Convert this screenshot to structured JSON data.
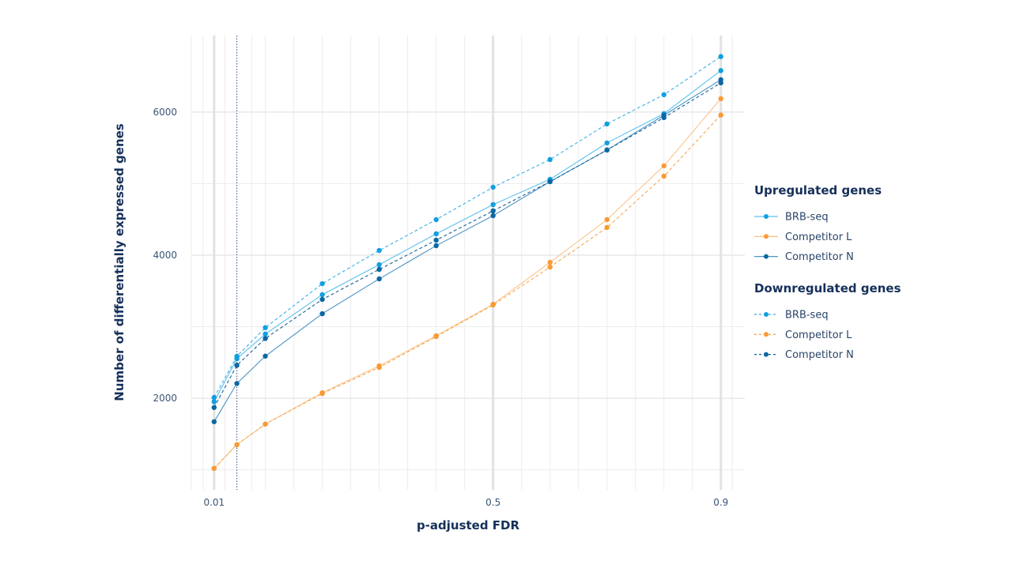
{
  "chart_data": {
    "type": "line",
    "title": "",
    "xlabel": "p-adjusted FDR",
    "ylabel": "Number of differentially expressed genes",
    "xlim": [
      -0.03,
      0.942
    ],
    "ylim": [
      720,
      7070
    ],
    "x_ticks": [
      0.01,
      0.5,
      0.9
    ],
    "x_tick_labels": [
      "0.01",
      "0.5",
      "0.9"
    ],
    "y_ticks": [
      2000,
      4000,
      6000
    ],
    "y_tick_labels": [
      "2000",
      "4000",
      "6000"
    ],
    "grid": true,
    "reference_line_x": 0.05,
    "legend_position": "right",
    "x": [
      0.01,
      0.05,
      0.1,
      0.2,
      0.3,
      0.4,
      0.5,
      0.6,
      0.7,
      0.8,
      0.9
    ],
    "legend_groups": [
      {
        "title": "Upregulated genes",
        "linestyle": "solid"
      },
      {
        "title": "Downregulated genes",
        "linestyle": "dashed"
      }
    ],
    "series": [
      {
        "name": "BRB-seq",
        "group": "Upregulated genes",
        "linestyle": "solid",
        "color": "#129fe0",
        "line_color": "#5cc0ee",
        "values": [
          1952,
          2552,
          2898,
          3448,
          3867,
          4298,
          4707,
          5061,
          5569,
          5978,
          6580
        ]
      },
      {
        "name": "Competitor L",
        "group": "Upregulated genes",
        "linestyle": "solid",
        "color": "#f89a35",
        "line_color": "#fbc48a",
        "values": [
          1020,
          1351,
          1639,
          2077,
          2453,
          2873,
          3315,
          3900,
          4497,
          5249,
          6188
        ]
      },
      {
        "name": "Competitor N",
        "group": "Upregulated genes",
        "linestyle": "solid",
        "color": "#0b68a3",
        "line_color": "#4a94c4",
        "values": [
          1672,
          2207,
          2589,
          3182,
          3669,
          4133,
          4552,
          5028,
          5470,
          5956,
          6453
        ]
      },
      {
        "name": "BRB-seq",
        "group": "Downregulated genes",
        "linestyle": "dashed",
        "color": "#129fe0",
        "line_color": "#3aaee6",
        "values": [
          2011,
          2586,
          2987,
          3602,
          4066,
          4497,
          4950,
          5337,
          5834,
          6243,
          6776
        ]
      },
      {
        "name": "Competitor L",
        "group": "Downregulated genes",
        "linestyle": "dashed",
        "color": "#f89a35",
        "line_color": "#f8a650",
        "values": [
          1020,
          1351,
          1639,
          2066,
          2431,
          2862,
          3304,
          3834,
          4387,
          5105,
          5959
        ]
      },
      {
        "name": "Competitor N",
        "group": "Downregulated genes",
        "linestyle": "dashed",
        "color": "#0b68a3",
        "line_color": "#1a5f95",
        "values": [
          1871,
          2461,
          2836,
          3381,
          3801,
          4210,
          4619,
          5028,
          5470,
          5923,
          6409
        ]
      }
    ]
  }
}
